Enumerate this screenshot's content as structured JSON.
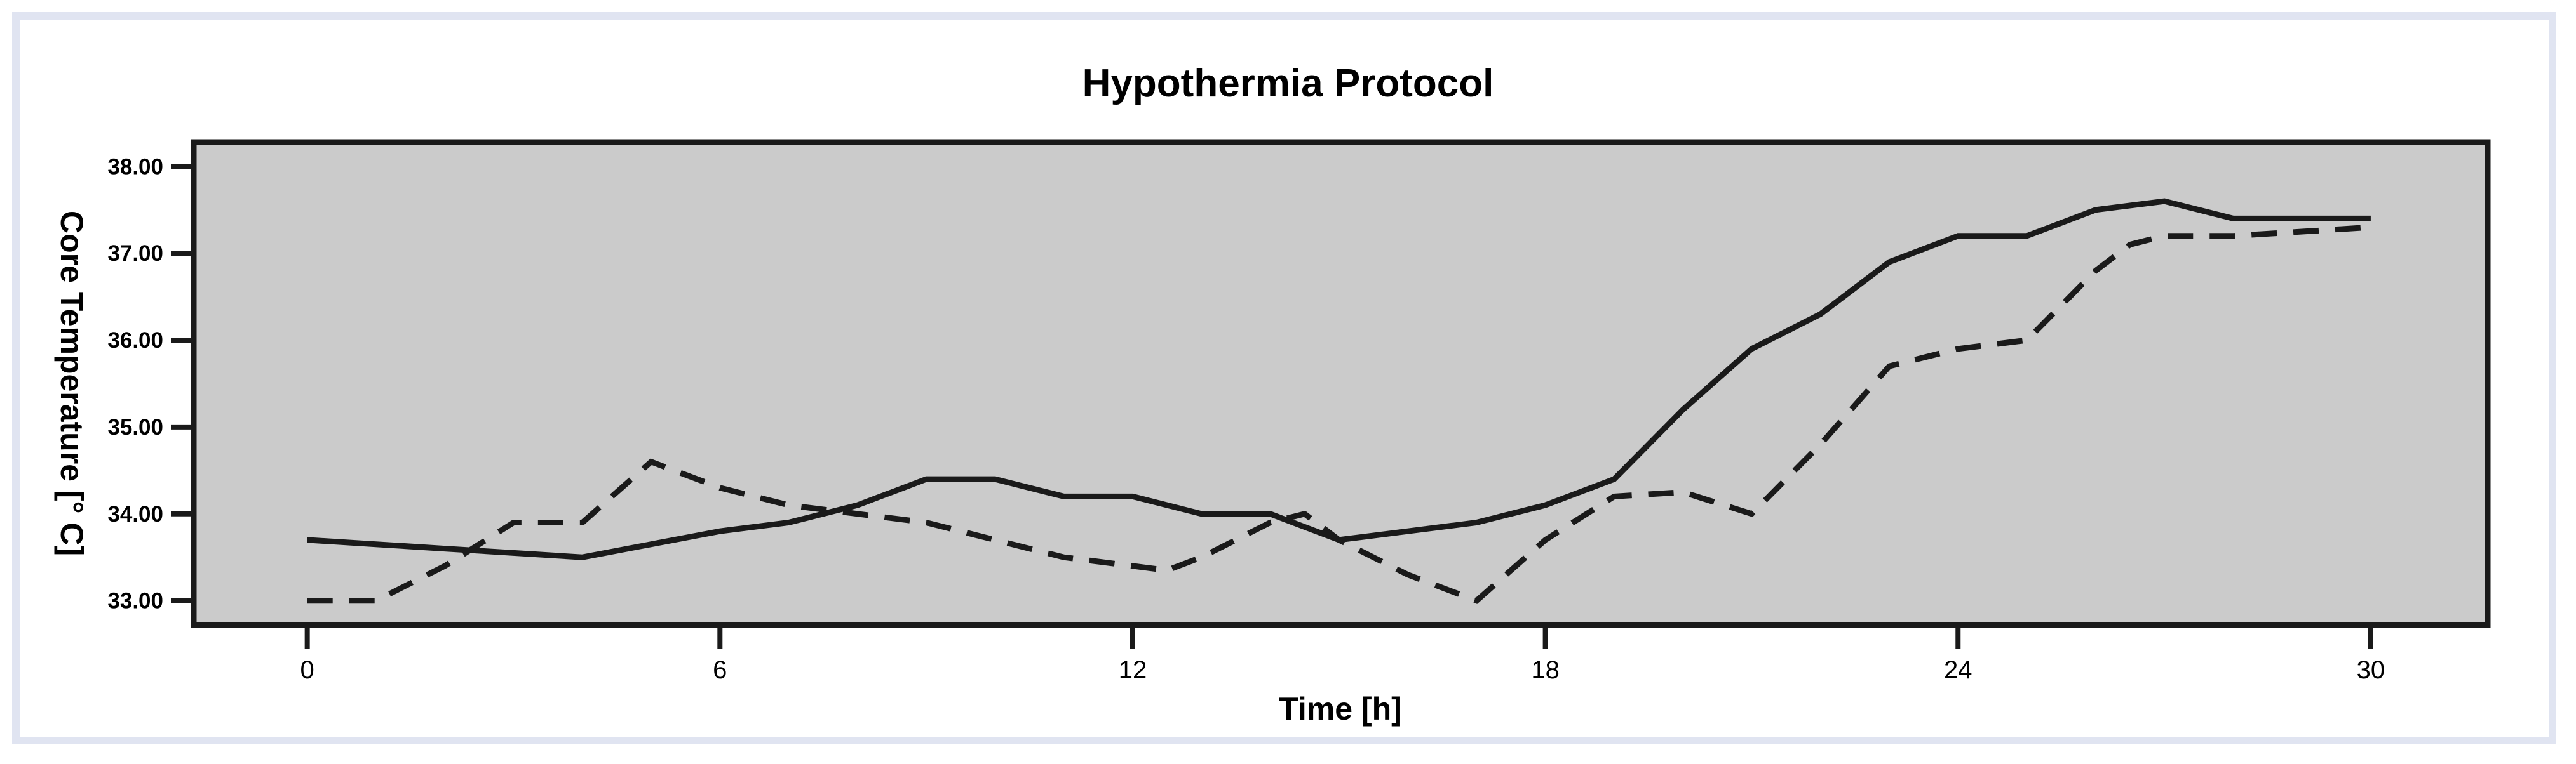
{
  "chart": {
    "title": "Hypothermia Protocol",
    "x_axis": {
      "title": "Time [h]",
      "tick_values": [
        0,
        6,
        12,
        18,
        24,
        30
      ],
      "tick_labels": [
        "0",
        "6",
        "12",
        "18",
        "24",
        "30"
      ]
    },
    "y_axis": {
      "title": "Core Temperature [° C]",
      "tick_values": [
        38,
        37,
        36,
        35,
        34,
        33
      ],
      "tick_labels": [
        "38.00",
        "37.00",
        "36.00",
        "35.00",
        "34.00",
        "33.00"
      ]
    },
    "colors": {
      "page_background": "#ffffff",
      "frame": "#e0e4f1",
      "plot_background": "#cbcbcb",
      "line": "#1a1a1a"
    }
  },
  "chart_data": {
    "type": "line",
    "title": "Hypothermia Protocol",
    "xlabel": "Time [h]",
    "ylabel": "Core Temperature [° C]",
    "xlim": [
      -1.65,
      31.7
    ],
    "ylim": [
      32.72,
      38.28
    ],
    "x_ticks": [
      0,
      6,
      12,
      18,
      24,
      30
    ],
    "y_ticks": [
      33,
      34,
      35,
      36,
      37,
      38
    ],
    "grid": false,
    "legend": "none",
    "series": [
      {
        "name": "solid line",
        "style": "solid",
        "points": [
          [
            0,
            33.7
          ],
          [
            1,
            33.65
          ],
          [
            2,
            33.6
          ],
          [
            3,
            33.55
          ],
          [
            4,
            33.5
          ],
          [
            5,
            33.65
          ],
          [
            6,
            33.8
          ],
          [
            7,
            33.9
          ],
          [
            8,
            34.1
          ],
          [
            9,
            34.4
          ],
          [
            10,
            34.4
          ],
          [
            11,
            34.2
          ],
          [
            12,
            34.2
          ],
          [
            13,
            34.0
          ],
          [
            14,
            34.0
          ],
          [
            15,
            33.7
          ],
          [
            16,
            33.8
          ],
          [
            17,
            33.9
          ],
          [
            18,
            34.1
          ],
          [
            19,
            34.4
          ],
          [
            20,
            35.2
          ],
          [
            21,
            35.9
          ],
          [
            22,
            36.3
          ],
          [
            23,
            36.9
          ],
          [
            24,
            37.2
          ],
          [
            25,
            37.2
          ],
          [
            26,
            37.5
          ],
          [
            27,
            37.6
          ],
          [
            28,
            37.4
          ],
          [
            29,
            37.4
          ],
          [
            30,
            37.4
          ]
        ]
      },
      {
        "name": "dashed line",
        "style": "dashed",
        "points": [
          [
            0,
            33.0
          ],
          [
            1,
            33.0
          ],
          [
            2,
            33.4
          ],
          [
            3,
            33.9
          ],
          [
            4,
            33.9
          ],
          [
            5,
            34.6
          ],
          [
            6,
            34.3
          ],
          [
            7,
            34.1
          ],
          [
            8,
            34.0
          ],
          [
            9,
            33.9
          ],
          [
            10,
            33.7
          ],
          [
            11,
            33.5
          ],
          [
            12,
            33.4
          ],
          [
            12.5,
            33.35
          ],
          [
            13,
            33.5
          ],
          [
            14,
            33.9
          ],
          [
            14.5,
            34.0
          ],
          [
            15,
            33.7
          ],
          [
            16,
            33.3
          ],
          [
            17,
            33.0
          ],
          [
            18,
            33.7
          ],
          [
            19,
            34.2
          ],
          [
            20,
            34.25
          ],
          [
            21,
            34.0
          ],
          [
            22,
            34.8
          ],
          [
            23,
            35.7
          ],
          [
            24,
            35.9
          ],
          [
            25,
            36.0
          ],
          [
            26,
            36.8
          ],
          [
            26.5,
            37.1
          ],
          [
            27,
            37.2
          ],
          [
            28,
            37.2
          ],
          [
            29,
            37.25
          ],
          [
            30,
            37.3
          ]
        ]
      }
    ]
  }
}
